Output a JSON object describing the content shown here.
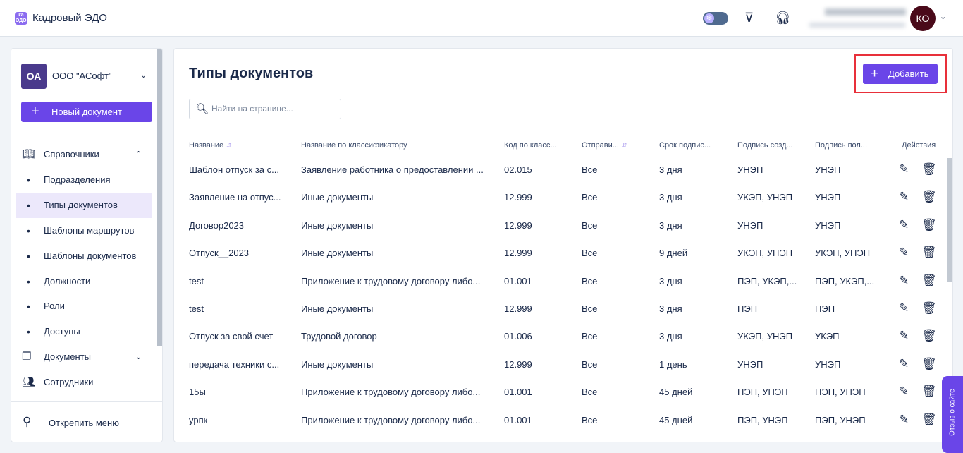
{
  "app": {
    "title": "Кадровый ЭДО",
    "logo_text": "ка ЭДО"
  },
  "header": {
    "user_initials": "КО",
    "icons": [
      "snowflake-theme-toggle",
      "send-icon",
      "headset-icon"
    ]
  },
  "sidebar": {
    "org_initials": "ОА",
    "org_name": "ООО \"АСофт\"",
    "new_doc_label": "Новый документ",
    "items": [
      {
        "label": "Справочники",
        "icon": "book-icon",
        "expanded": true
      },
      {
        "label": "Подразделения",
        "sub": true
      },
      {
        "label": "Типы документов",
        "sub": true,
        "active": true
      },
      {
        "label": "Шаблоны маршрутов",
        "sub": true
      },
      {
        "label": "Шаблоны документов",
        "sub": true
      },
      {
        "label": "Должности",
        "sub": true
      },
      {
        "label": "Роли",
        "sub": true
      },
      {
        "label": "Доступы",
        "sub": true
      },
      {
        "label": "Документы",
        "icon": "documents-icon",
        "expanded": false
      },
      {
        "label": "Сотрудники",
        "icon": "users-icon"
      }
    ],
    "unpin_label": "Открепить меню"
  },
  "main": {
    "title": "Типы документов",
    "add_label": "Добавить",
    "search_placeholder": "Найти на странице...",
    "columns": [
      "Название",
      "Название по классификатору",
      "Код по класс...",
      "Отправи...",
      "Срок подпис...",
      "Подпись созд...",
      "Подпись пол...",
      "Действия"
    ],
    "rows": [
      [
        "Шаблон отпуск за с...",
        "Заявление работника о предоставлении ...",
        "02.015",
        "Все",
        "3 дня",
        "УНЭП",
        "УНЭП"
      ],
      [
        "Заявление на отпус...",
        "Иные документы",
        "12.999",
        "Все",
        "3 дня",
        "УКЭП, УНЭП",
        "УНЭП"
      ],
      [
        "Договор2023",
        "Иные документы",
        "12.999",
        "Все",
        "3 дня",
        "УНЭП",
        "УНЭП"
      ],
      [
        "Отпуск__2023",
        "Иные документы",
        "12.999",
        "Все",
        "9 дней",
        "УКЭП, УНЭП",
        "УКЭП, УНЭП"
      ],
      [
        "test",
        "Приложение к трудовому договору либо...",
        "01.001",
        "Все",
        "3 дня",
        "ПЭП, УКЭП,...",
        "ПЭП, УКЭП,..."
      ],
      [
        "test",
        "Иные документы",
        "12.999",
        "Все",
        "3 дня",
        "ПЭП",
        "ПЭП"
      ],
      [
        "Отпуск за свой счет",
        "Трудовой договор",
        "01.006",
        "Все",
        "3 дня",
        "УКЭП, УНЭП",
        "УКЭП"
      ],
      [
        "передача техники с...",
        "Иные документы",
        "12.999",
        "Все",
        "1 день",
        "УНЭП",
        "УНЭП"
      ],
      [
        "15ы",
        "Приложение к трудовому договору либо...",
        "01.001",
        "Все",
        "45 дней",
        "ПЭП, УНЭП",
        "ПЭП, УНЭП"
      ],
      [
        "урпк",
        "Приложение к трудовому договору либо...",
        "01.001",
        "Все",
        "45 дней",
        "ПЭП, УНЭП",
        "ПЭП, УНЭП"
      ]
    ]
  },
  "feedback_label": "Отзыв о сайте",
  "colors": {
    "accent": "#6a45e8",
    "highlight": "#e8303a",
    "text": "#1b2a4a"
  }
}
